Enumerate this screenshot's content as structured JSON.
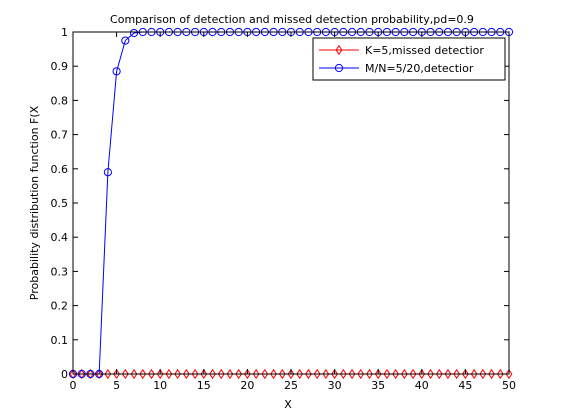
{
  "chart_data": {
    "type": "line",
    "title": "Comparison of detection and missed detection probability,pd=0.9",
    "xlabel": "X",
    "ylabel": "Probability distribution function F(X",
    "xlim": [
      0,
      50
    ],
    "ylim": [
      0,
      1
    ],
    "xticks": [
      0,
      5,
      10,
      15,
      20,
      25,
      30,
      35,
      40,
      45,
      50
    ],
    "yticks": [
      0,
      0.1,
      0.2,
      0.3,
      0.4,
      0.5,
      0.6,
      0.7,
      0.8,
      0.9,
      1
    ],
    "xtick_labels": [
      "0",
      "5",
      "10",
      "15",
      "20",
      "25",
      "30",
      "35",
      "40",
      "45",
      "50"
    ],
    "ytick_labels": [
      "0",
      "0.1",
      "0.2",
      "0.3",
      "0.4",
      "0.5",
      "0.6",
      "0.7",
      "0.8",
      "0.9",
      "1"
    ],
    "grid": false,
    "legend_position": "top-right",
    "x": [
      0,
      1,
      2,
      3,
      4,
      5,
      6,
      7,
      8,
      9,
      10,
      11,
      12,
      13,
      14,
      15,
      16,
      17,
      18,
      19,
      20,
      21,
      22,
      23,
      24,
      25,
      26,
      27,
      28,
      29,
      30,
      31,
      32,
      33,
      34,
      35,
      36,
      37,
      38,
      39,
      40,
      41,
      42,
      43,
      44,
      45,
      46,
      47,
      48,
      49,
      50
    ],
    "series": [
      {
        "name": "K=5,missed detectior",
        "color": "#ff0000",
        "marker": "diamond",
        "values": [
          0,
          0,
          0,
          0,
          0,
          0,
          0,
          0,
          0,
          0,
          0,
          0,
          0,
          0,
          0,
          0,
          0,
          0,
          0,
          0,
          0,
          0,
          0,
          0,
          0,
          0,
          0,
          0,
          0,
          0,
          0,
          0,
          0,
          0,
          0,
          0,
          0,
          0,
          0,
          0,
          0,
          0,
          0,
          0,
          0,
          0,
          0,
          0,
          0,
          0,
          0
        ]
      },
      {
        "name": "M/N=5/20,detectior",
        "color": "#0000ff",
        "marker": "circle",
        "values": [
          0,
          0,
          0,
          0,
          0.59,
          0.885,
          0.975,
          0.997,
          1,
          1,
          1,
          1,
          1,
          1,
          1,
          1,
          1,
          1,
          1,
          1,
          1,
          1,
          1,
          1,
          1,
          1,
          1,
          1,
          1,
          1,
          1,
          1,
          1,
          1,
          1,
          1,
          1,
          1,
          1,
          1,
          1,
          1,
          1,
          1,
          1,
          1,
          1,
          1,
          1,
          1,
          1
        ]
      }
    ]
  }
}
